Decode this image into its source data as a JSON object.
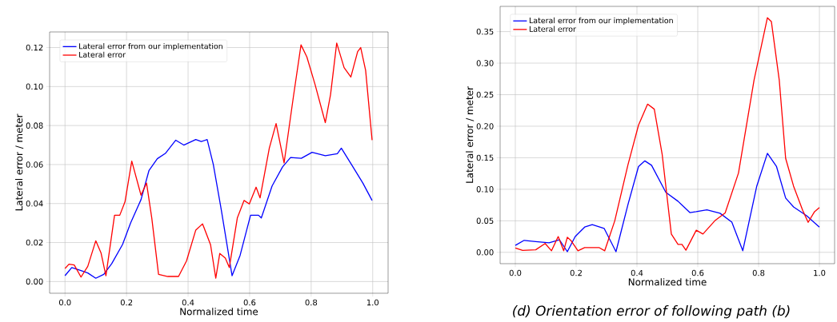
{
  "chart_data": [
    {
      "type": "line",
      "xlabel": "Normalized time",
      "ylabel": "Lateral error / meter",
      "xlim": [
        -0.05,
        1.05
      ],
      "ylim": [
        -0.006,
        0.128
      ],
      "xticks": [
        {
          "value": 0,
          "label": "0.0"
        },
        {
          "value": 0.2,
          "label": "0.2"
        },
        {
          "value": 0.4,
          "label": "0.4"
        },
        {
          "value": 0.6,
          "label": "0.6"
        },
        {
          "value": 0.8,
          "label": "0.8"
        },
        {
          "value": 1,
          "label": "1.0"
        }
      ],
      "yticks": [
        {
          "value": 0,
          "label": "0.00"
        },
        {
          "value": 0.02,
          "label": "0.02"
        },
        {
          "value": 0.04,
          "label": "0.04"
        },
        {
          "value": 0.06,
          "label": "0.06"
        },
        {
          "value": 0.08,
          "label": "0.08"
        },
        {
          "value": 0.1,
          "label": "0.10"
        },
        {
          "value": 0.12,
          "label": "0.12"
        }
      ],
      "grid": true,
      "legend": "top left",
      "marker": "none",
      "line_style": "solid",
      "series": [
        {
          "name": "Lateral error from our implementation",
          "color": "#0000ff",
          "x": [
            0,
            0.022,
            0.048,
            0.074,
            0.1,
            0.126,
            0.152,
            0.187,
            0.213,
            0.247,
            0.273,
            0.3,
            0.326,
            0.36,
            0.386,
            0.425,
            0.443,
            0.462,
            0.482,
            0.508,
            0.543,
            0.569,
            0.603,
            0.629,
            0.638,
            0.673,
            0.707,
            0.733,
            0.768,
            0.803,
            0.846,
            0.885,
            0.898,
            0.933,
            0.968,
            0.998
          ],
          "values": [
            0.003,
            0.0072,
            0.0058,
            0.0044,
            0.0017,
            0.0037,
            0.0092,
            0.019,
            0.03,
            0.042,
            0.057,
            0.063,
            0.0657,
            0.0725,
            0.07,
            0.0728,
            0.0718,
            0.0728,
            0.06,
            0.0367,
            0.003,
            0.0134,
            0.034,
            0.034,
            0.0326,
            0.049,
            0.0588,
            0.0636,
            0.0632,
            0.0663,
            0.0645,
            0.0656,
            0.0684,
            0.0595,
            0.0505,
            0.0416
          ]
        },
        {
          "name": "Lateral error",
          "color": "#ff0000",
          "x": [
            0,
            0.013,
            0.03,
            0.052,
            0.074,
            0.1,
            0.117,
            0.133,
            0.161,
            0.178,
            0.195,
            0.217,
            0.247,
            0.265,
            0.282,
            0.304,
            0.334,
            0.369,
            0.395,
            0.425,
            0.447,
            0.473,
            0.49,
            0.503,
            0.521,
            0.534,
            0.56,
            0.582,
            0.599,
            0.621,
            0.634,
            0.664,
            0.686,
            0.712,
            0.742,
            0.767,
            0.786,
            0.812,
            0.846,
            0.863,
            0.883,
            0.907,
            0.929,
            0.951,
            0.961,
            0.977,
            0.998
          ],
          "values": [
            0.0067,
            0.0089,
            0.0085,
            0.0023,
            0.0078,
            0.0209,
            0.0147,
            0.003,
            0.034,
            0.034,
            0.0409,
            0.0618,
            0.0443,
            0.0505,
            0.0326,
            0.0037,
            0.0026,
            0.0026,
            0.0106,
            0.0264,
            0.0296,
            0.0189,
            0.0017,
            0.0144,
            0.012,
            0.0072,
            0.0326,
            0.0416,
            0.0398,
            0.0484,
            0.0429,
            0.0684,
            0.081,
            0.0608,
            0.0945,
            0.1214,
            0.1152,
            0.1014,
            0.0815,
            0.0959,
            0.1223,
            0.1097,
            0.1049,
            0.1179,
            0.12,
            0.1083,
            0.0725
          ]
        }
      ]
    },
    {
      "type": "line",
      "xlabel": "Normalized time",
      "ylabel": "Lateral error / meter",
      "xlim": [
        -0.05,
        1.05
      ],
      "ylim": [
        -0.018,
        0.39
      ],
      "xticks": [
        {
          "value": 0,
          "label": "0.0"
        },
        {
          "value": 0.2,
          "label": "0.2"
        },
        {
          "value": 0.4,
          "label": "0.4"
        },
        {
          "value": 0.6,
          "label": "0.6"
        },
        {
          "value": 0.8,
          "label": "0.8"
        },
        {
          "value": 1,
          "label": "1.0"
        }
      ],
      "yticks": [
        {
          "value": 0,
          "label": "0.00"
        },
        {
          "value": 0.05,
          "label": "0.05"
        },
        {
          "value": 0.1,
          "label": "0.10"
        },
        {
          "value": 0.15,
          "label": "0.15"
        },
        {
          "value": 0.2,
          "label": "0.20"
        },
        {
          "value": 0.25,
          "label": "0.25"
        },
        {
          "value": 0.3,
          "label": "0.30"
        },
        {
          "value": 0.35,
          "label": "0.35"
        }
      ],
      "grid": true,
      "legend": "top left",
      "marker": "none",
      "line_style": "solid",
      "annotations": [
        "(d) Orientation error of following path (b)"
      ],
      "series": [
        {
          "name": "Lateral error from our implementation",
          "color": "#0000ff",
          "x": [
            0,
            0.029,
            0.067,
            0.111,
            0.145,
            0.171,
            0.197,
            0.228,
            0.253,
            0.292,
            0.331,
            0.37,
            0.405,
            0.426,
            0.448,
            0.495,
            0.535,
            0.574,
            0.595,
            0.63,
            0.673,
            0.712,
            0.748,
            0.794,
            0.829,
            0.859,
            0.889,
            0.915,
            0.958,
            1.0
          ],
          "values": [
            0.011,
            0.019,
            0.017,
            0.015,
            0.02,
            0.001,
            0.025,
            0.04,
            0.044,
            0.038,
            0.001,
            0.075,
            0.136,
            0.145,
            0.138,
            0.095,
            0.081,
            0.063,
            0.0645,
            0.0675,
            0.062,
            0.048,
            0.0025,
            0.105,
            0.157,
            0.136,
            0.086,
            0.072,
            0.058,
            0.04
          ]
        },
        {
          "name": "Lateral error",
          "color": "#ff0000",
          "x": [
            0,
            0.024,
            0.067,
            0.098,
            0.119,
            0.141,
            0.159,
            0.171,
            0.184,
            0.206,
            0.228,
            0.275,
            0.294,
            0.327,
            0.37,
            0.405,
            0.435,
            0.457,
            0.483,
            0.513,
            0.535,
            0.548,
            0.561,
            0.595,
            0.617,
            0.656,
            0.69,
            0.734,
            0.785,
            0.829,
            0.842,
            0.868,
            0.889,
            0.915,
            0.945,
            0.963,
            0.984,
            1.0
          ],
          "values": [
            0.007,
            0.003,
            0.004,
            0.014,
            0.0025,
            0.025,
            0.0025,
            0.024,
            0.018,
            0.0025,
            0.0076,
            0.0076,
            0.0025,
            0.05,
            0.138,
            0.2015,
            0.235,
            0.227,
            0.155,
            0.029,
            0.0126,
            0.0126,
            0.0034,
            0.035,
            0.029,
            0.05,
            0.0624,
            0.126,
            0.273,
            0.372,
            0.366,
            0.273,
            0.149,
            0.105,
            0.0666,
            0.0476,
            0.0645,
            0.071
          ]
        }
      ]
    }
  ]
}
